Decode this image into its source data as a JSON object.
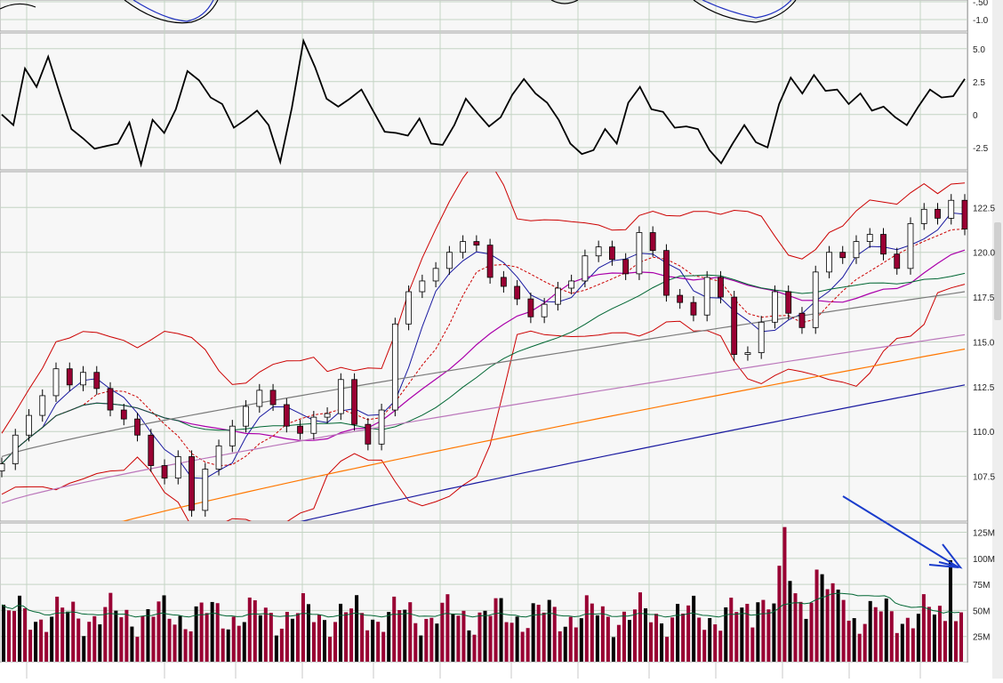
{
  "chart_data": [
    {
      "panel": "upper-indicator",
      "type": "line",
      "y_ticks": [
        "-.50",
        "-1.0"
      ],
      "y_values": [
        -0.5,
        -1.0
      ]
    },
    {
      "panel": "oscillator",
      "type": "line",
      "y_ticks": [
        "5.0",
        "2.5",
        "0",
        "-2.5"
      ],
      "y_values": [
        5.0,
        2.5,
        0,
        -2.5
      ],
      "ylim": [
        -4.2,
        6.2
      ],
      "series": [
        {
          "values": [
            0,
            -0.8,
            3.5,
            2.1,
            4.4,
            1.6,
            -1.1,
            -1.8,
            -2.6,
            -2.4,
            -2.2,
            -0.6,
            -3.8,
            -0.4,
            -1.4,
            0.4,
            3.3,
            2.6,
            1.3,
            0.8,
            -1.0,
            -0.4,
            0.3,
            -0.8,
            -3.6,
            0.5,
            5.6,
            3.6,
            1.2,
            0.6,
            1.2,
            1.9,
            0.3,
            -1.3,
            -1.4,
            -1.6,
            -0.3,
            -2.2,
            -2.3,
            -0.8,
            1.2,
            0.1,
            -0.9,
            -0.2,
            1.5,
            2.7,
            1.6,
            0.9,
            -0.4,
            -2.2,
            -3.0,
            -2.7,
            -1.1,
            -2.2,
            0.9,
            2.1,
            0.4,
            0.2,
            -1.0,
            -0.9,
            -1.1,
            -2.7,
            -3.7,
            -2.2,
            -0.8,
            -2.1,
            -2.5,
            0.8,
            2.8,
            1.6,
            3.0,
            1.8,
            1.9,
            0.8,
            1.6,
            0.3,
            0.6,
            -0.2,
            -0.8,
            0.6,
            1.9,
            1.3,
            1.4,
            2.7
          ],
          "color": "#000000"
        }
      ]
    },
    {
      "panel": "price",
      "type": "line",
      "y_ticks": [
        "122.5",
        "120.0",
        "117.5",
        "115.0",
        "112.5",
        "110.0",
        "107.5"
      ],
      "y_values": [
        122.5,
        120.0,
        117.5,
        115.0,
        112.5,
        110.0,
        107.5
      ],
      "ylim": [
        105.0,
        124.5
      ],
      "close_series": [
        108.2,
        109.8,
        110.9,
        112.0,
        113.5,
        112.6,
        113.3,
        112.4,
        111.2,
        110.7,
        109.8,
        108.1,
        107.4,
        108.6,
        105.6,
        107.9,
        109.2,
        110.3,
        111.4,
        112.3,
        111.5,
        110.3,
        109.9,
        110.8,
        111.0,
        112.9,
        110.4,
        109.3,
        111.2,
        116.0,
        117.8,
        118.4,
        119.1,
        120.0,
        120.6,
        120.4,
        118.6,
        118.1,
        117.4,
        116.4,
        117.1,
        118.0,
        118.4,
        119.8,
        120.3,
        119.6,
        118.8,
        121.1,
        120.1,
        117.6,
        117.2,
        116.5,
        118.6,
        117.5,
        114.3,
        114.4,
        116.1,
        117.8,
        116.6,
        115.8,
        118.9,
        120.0,
        119.7,
        120.6,
        121.0,
        119.9,
        119.1,
        121.6,
        122.4,
        121.9,
        122.9,
        121.3
      ],
      "line_colors": [
        "#cc0000",
        "#cc0000",
        "#1a1aa0",
        "#aa00aa",
        "#cc0000",
        "#006633",
        "#7a7a7a",
        "#bb77bb",
        "#ff7700",
        "#1a1aa0"
      ]
    },
    {
      "panel": "volume",
      "type": "bar",
      "y_ticks": [
        "125M",
        "100M",
        "75M",
        "50M",
        "25M"
      ],
      "y_values": [
        125,
        100,
        75,
        50,
        25
      ],
      "ylim": [
        0,
        134
      ],
      "bar_colors": [
        "#000000",
        "#990033"
      ],
      "avg_color": "#006633",
      "annotation_color": "#1a3ccc"
    }
  ]
}
